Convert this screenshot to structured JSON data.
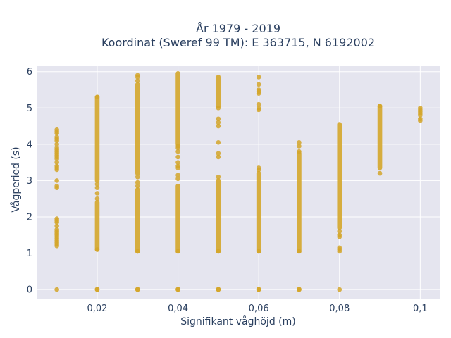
{
  "chart_data": {
    "type": "scatter",
    "title_lines": [
      "År 1979 - 2019",
      "Koordinat (Sweref 99 TM): E 363715, N 6192002"
    ],
    "xlabel": "Signifikant våghöjd (m)",
    "ylabel": "Vågperiod (s)",
    "xlim": [
      0.005,
      0.105
    ],
    "ylim": [
      -0.25,
      6.15
    ],
    "x_ticks": [
      0.02,
      0.04,
      0.06,
      0.08,
      0.1
    ],
    "x_tick_labels": [
      "0,02",
      "0,04",
      "0,06",
      "0,08",
      "0,1"
    ],
    "y_ticks": [
      0,
      1,
      2,
      3,
      4,
      5,
      6
    ],
    "y_tick_labels": [
      "0",
      "1",
      "2",
      "3",
      "4",
      "5",
      "6"
    ],
    "grid": true,
    "legend": "none",
    "marker_color": "#d4a62a",
    "background_color": "#e5e5ef",
    "columns": [
      {
        "x": 0.01,
        "points": [
          0,
          1.2,
          1.25,
          1.3,
          1.35,
          1.4,
          1.45,
          1.5,
          1.55,
          1.6,
          1.65,
          1.75,
          1.85,
          1.9,
          1.95,
          2.8,
          2.85,
          3.0,
          3.3,
          3.35,
          3.4,
          3.5,
          3.6,
          3.65,
          3.7,
          3.75,
          3.8,
          3.85,
          3.9,
          4.0,
          4.1,
          4.15,
          4.2,
          4.3,
          4.35,
          4.4
        ],
        "runs": []
      },
      {
        "x": 0.02,
        "points": [
          0,
          1.1,
          2.5,
          2.65,
          2.8,
          2.9,
          5.3
        ],
        "runs": [
          [
            0,
            0.01
          ],
          [
            1.1,
            2.4
          ],
          [
            3.0,
            5.3
          ]
        ]
      },
      {
        "x": 0.03,
        "points": [
          0,
          1.05,
          2.85,
          2.95,
          3.1,
          5.75,
          5.85,
          5.9
        ],
        "runs": [
          [
            0,
            0.01
          ],
          [
            1.05,
            2.75
          ],
          [
            3.2,
            5.65
          ]
        ]
      },
      {
        "x": 0.04,
        "points": [
          0,
          1.05,
          3.05,
          3.15,
          3.35,
          3.4,
          3.5,
          3.65,
          3.8,
          3.9,
          3.95
        ],
        "runs": [
          [
            0,
            0.01
          ],
          [
            1.05,
            2.85
          ],
          [
            4.0,
            5.95
          ]
        ]
      },
      {
        "x": 0.05,
        "points": [
          0,
          1.05,
          3.1,
          3.65,
          3.75,
          4.05,
          4.5,
          4.6,
          4.7,
          5.0
        ],
        "runs": [
          [
            0,
            0.01
          ],
          [
            1.05,
            3.0
          ],
          [
            5.05,
            5.85
          ]
        ]
      },
      {
        "x": 0.06,
        "points": [
          0,
          1.05,
          3.3,
          3.35,
          4.95,
          5.0,
          5.1,
          5.4,
          5.45,
          5.5,
          5.65,
          5.85
        ],
        "runs": [
          [
            0,
            0.01
          ],
          [
            1.05,
            3.2
          ]
        ]
      },
      {
        "x": 0.07,
        "points": [
          0,
          1.05,
          3.8,
          3.95,
          4.05
        ],
        "runs": [
          [
            0,
            0.01
          ],
          [
            1.05,
            3.75
          ]
        ]
      },
      {
        "x": 0.08,
        "points": [
          0,
          1.05,
          1.1,
          1.15,
          1.45,
          1.5,
          1.6
        ],
        "runs": [
          [
            1.7,
            4.55
          ]
        ]
      },
      {
        "x": 0.09,
        "points": [
          3.2,
          5.05
        ],
        "runs": [
          [
            3.35,
            5.05
          ]
        ]
      },
      {
        "x": 0.1,
        "points": [
          4.65,
          4.7,
          4.8,
          4.85,
          4.9,
          4.95,
          5.0
        ],
        "runs": []
      }
    ]
  }
}
